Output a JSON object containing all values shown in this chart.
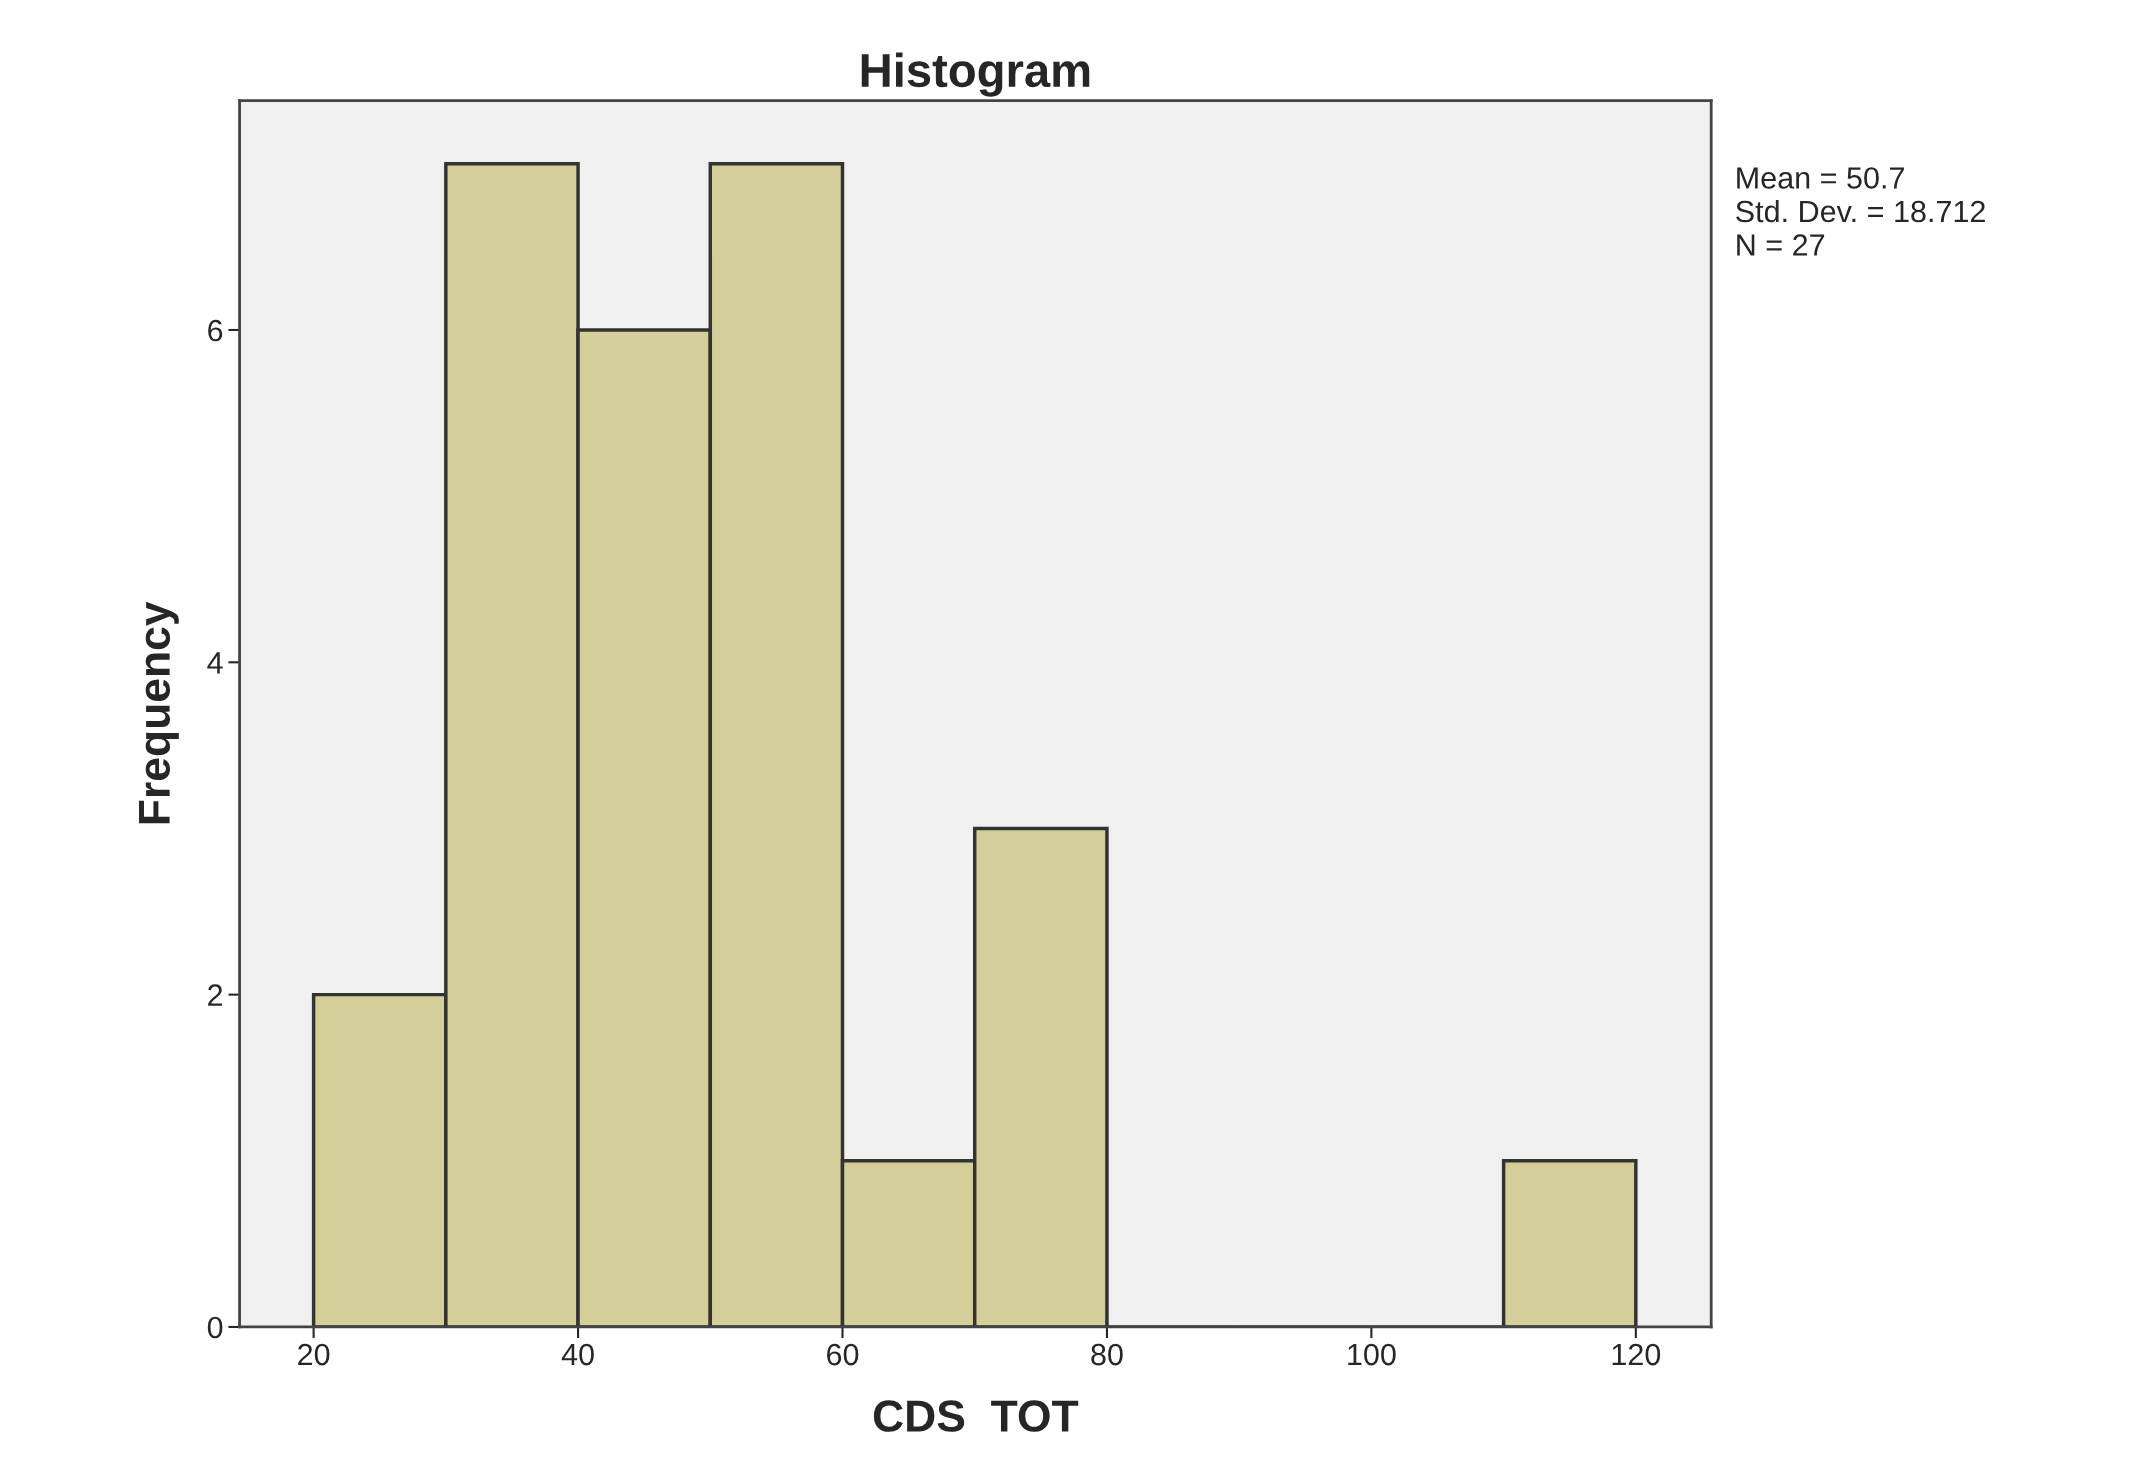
{
  "chart_data": {
    "type": "histogram",
    "title": "Histogram",
    "xlabel": "CDS  TOT",
    "ylabel": "Frequency",
    "bins": [
      20,
      30,
      40,
      50,
      60,
      70,
      80,
      90,
      100,
      110,
      120
    ],
    "values": [
      2,
      7,
      6,
      7,
      1,
      3,
      0,
      0,
      0,
      1
    ],
    "color": "#d4cf99",
    "xlim": [
      14.4,
      125.7
    ],
    "xticks": [
      20,
      40,
      60,
      80,
      100,
      120
    ],
    "ylim": [
      0,
      7.38
    ],
    "yticks": [
      0,
      2,
      4,
      6
    ],
    "grid": false,
    "annotations": [
      "Mean = 50.7",
      "Std. Dev. = 18.712",
      "N = 27"
    ]
  }
}
